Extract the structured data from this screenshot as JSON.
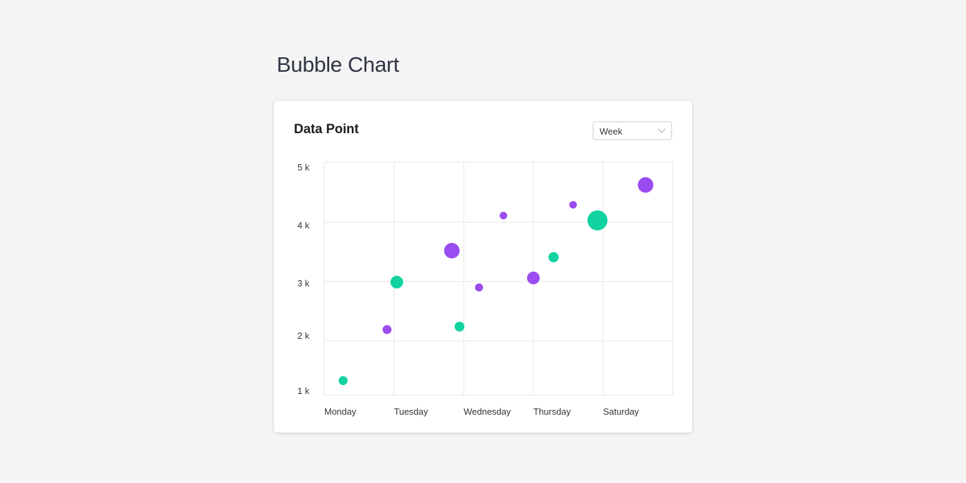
{
  "page": {
    "title": "Bubble Chart"
  },
  "card": {
    "title": "Data Point",
    "period_select": {
      "value": "Week"
    }
  },
  "colors": {
    "series_a": "#10d3a0",
    "series_b": "#9b4cf0",
    "grid": "#e6e6e6"
  },
  "chart_data": {
    "type": "scatter",
    "subtype": "bubble",
    "x_categories": [
      "Monday",
      "Tuesday",
      "Wednesday",
      "Thursday",
      "Saturday"
    ],
    "y_ticks": [
      "1 k",
      "2 k",
      "3 k",
      "4 k",
      "5 k"
    ],
    "xlim": [
      0,
      5
    ],
    "ylim": [
      1000,
      5000
    ],
    "grid": true,
    "legend": "none",
    "series": [
      {
        "color": "#10d3a0",
        "points": [
          {
            "x": 0.27,
            "y": 1270,
            "size": 1
          },
          {
            "x": 1.04,
            "y": 2990,
            "size": 2
          },
          {
            "x": 1.94,
            "y": 2240,
            "size": 1.2
          },
          {
            "x": 3.29,
            "y": 3410,
            "size": 1.3
          },
          {
            "x": 3.92,
            "y": 4030,
            "size": 5
          }
        ]
      },
      {
        "color": "#9b4cf0",
        "points": [
          {
            "x": 0.9,
            "y": 2190,
            "size": 1
          },
          {
            "x": 1.83,
            "y": 3520,
            "size": 3
          },
          {
            "x": 2.22,
            "y": 2900,
            "size": 0.8
          },
          {
            "x": 2.57,
            "y": 4110,
            "size": 0.7
          },
          {
            "x": 3.0,
            "y": 3060,
            "size": 2
          },
          {
            "x": 3.57,
            "y": 4290,
            "size": 0.7
          },
          {
            "x": 4.61,
            "y": 4620,
            "size": 3
          }
        ]
      }
    ]
  }
}
